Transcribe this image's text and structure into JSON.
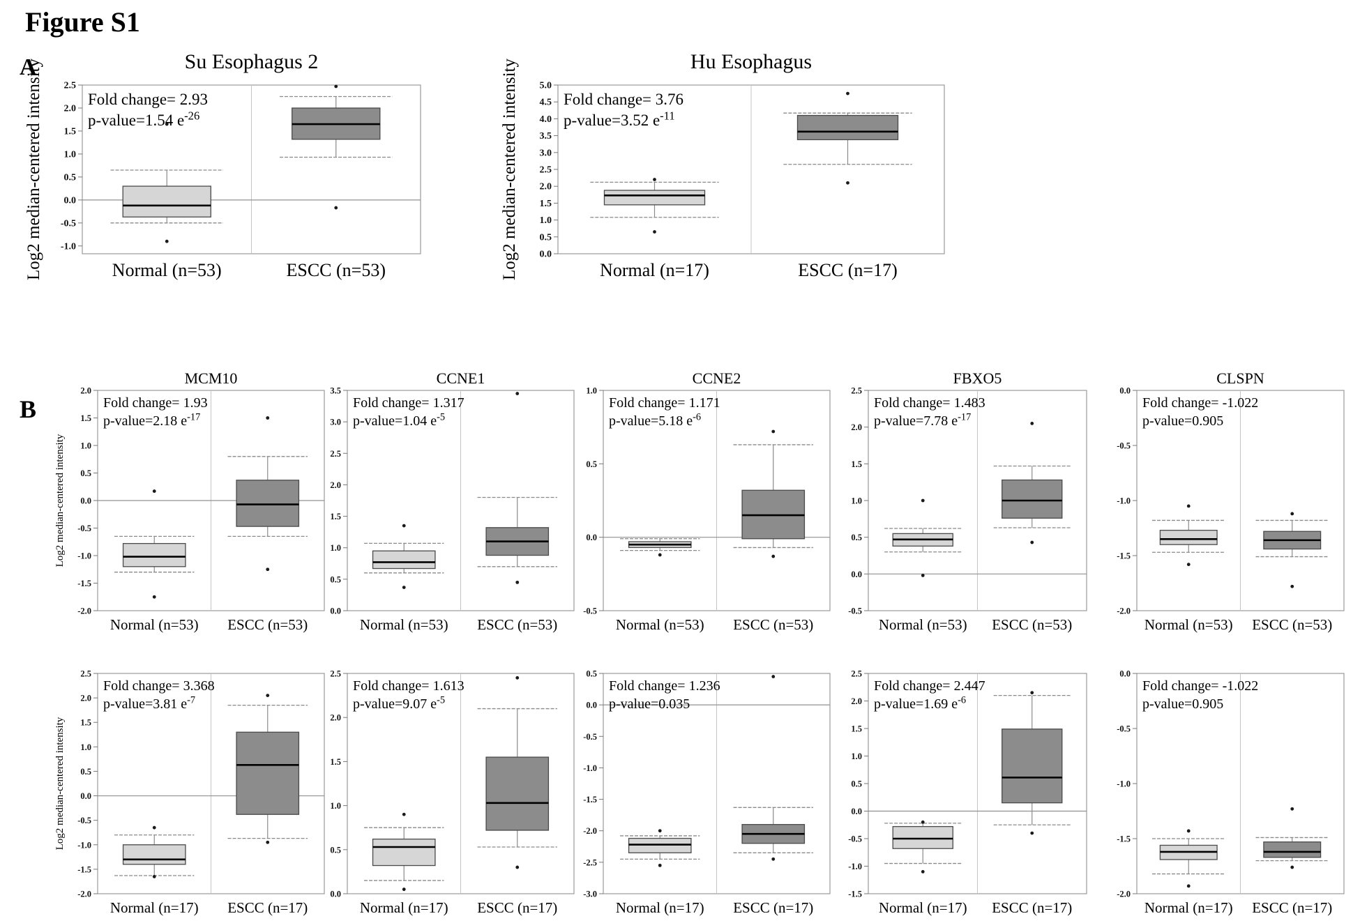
{
  "figure": {
    "title": "Figure S1"
  },
  "panels": {
    "a_label": "A",
    "b_label": "B"
  },
  "colors": {
    "normal_box": "#d6d6d6",
    "escc_box": "#8c8c8c",
    "box_border": "#4a4a4a",
    "median_line": "#000000",
    "whisker": "#8a8a8a",
    "axis_border": "#9a9a9a",
    "divider": "#c4c4c4",
    "zero_line": "#909090",
    "outlier": "#1a1a1a",
    "text": "#111111"
  },
  "chart_data": [
    {
      "id": "su-esophagus-2",
      "panel": "A",
      "type": "boxplot",
      "title": "Su Esophagus 2",
      "fold_label": "Fold change=  2.93",
      "p_label": "p-value=1.54  e",
      "p_exp": "-26",
      "ylabel": "Log2 median-centered intensity",
      "ylim": [
        -1.17,
        2.5
      ],
      "yticks": [
        2.5,
        2.0,
        1.5,
        1.0,
        0.5,
        0.0,
        -0.5,
        -1.0
      ],
      "groups": [
        {
          "label": "Normal (n=53)",
          "kind": "normal",
          "low": -0.5,
          "q1": -0.37,
          "median": -0.12,
          "q3": 0.3,
          "high": 0.65,
          "outliers": [
            1.65,
            -0.9
          ]
        },
        {
          "label": "ESCC (n=53)",
          "kind": "escc",
          "low": 0.93,
          "q1": 1.32,
          "median": 1.65,
          "q3": 2.0,
          "high": 2.25,
          "outliers": [
            2.47,
            -0.17
          ]
        }
      ]
    },
    {
      "id": "hu-esophagus",
      "panel": "A",
      "type": "boxplot",
      "title": "Hu Esophagus",
      "fold_label": "Fold change=  3.76",
      "p_label": "p-value=3.52  e",
      "p_exp": "-11",
      "ylabel": "Log2 median-centered intensity",
      "ylim": [
        0.0,
        5.0
      ],
      "yticks": [
        5.0,
        4.5,
        4.0,
        3.5,
        3.0,
        2.5,
        2.0,
        1.5,
        1.0,
        0.5,
        0.0
      ],
      "groups": [
        {
          "label": "Normal (n=17)",
          "kind": "normal",
          "low": 1.08,
          "q1": 1.45,
          "median": 1.73,
          "q3": 1.88,
          "high": 2.12,
          "outliers": [
            2.2,
            0.65
          ]
        },
        {
          "label": "ESCC (n=17)",
          "kind": "escc",
          "low": 2.65,
          "q1": 3.38,
          "median": 3.62,
          "q3": 4.1,
          "high": 4.17,
          "outliers": [
            4.75,
            2.1
          ]
        }
      ]
    },
    {
      "id": "mcm10-n53",
      "panel": "B",
      "type": "boxplot",
      "title": "MCM10",
      "fold_label": "Fold change=  1.93",
      "p_label": "p-value=2.18  e",
      "p_exp": "-17",
      "ylabel": "Log2 median-centered intensity",
      "ylim": [
        -2.0,
        2.0
      ],
      "yticks": [
        2.0,
        1.5,
        1.0,
        0.5,
        0.0,
        -0.5,
        -1.0,
        -1.5,
        -2.0
      ],
      "groups": [
        {
          "label": "Normal (n=53)",
          "kind": "normal",
          "low": -1.3,
          "q1": -1.2,
          "median": -1.02,
          "q3": -0.78,
          "high": -0.65,
          "outliers": [
            0.17,
            -1.75
          ]
        },
        {
          "label": "ESCC (n=53)",
          "kind": "escc",
          "low": -0.65,
          "q1": -0.47,
          "median": -0.07,
          "q3": 0.37,
          "high": 0.8,
          "outliers": [
            1.5,
            -1.25
          ]
        }
      ]
    },
    {
      "id": "ccne1-n53",
      "panel": "B",
      "type": "boxplot",
      "title": "CCNE1",
      "fold_label": "Fold change=  1.317",
      "p_label": "p-value=1.04  e",
      "p_exp": "-5",
      "ylabel": null,
      "ylim": [
        0.0,
        3.5
      ],
      "yticks": [
        3.5,
        3.0,
        2.5,
        2.0,
        1.5,
        1.0,
        0.5,
        0.0
      ],
      "groups": [
        {
          "label": "Normal (n=53)",
          "kind": "normal",
          "low": 0.6,
          "q1": 0.67,
          "median": 0.77,
          "q3": 0.95,
          "high": 1.07,
          "outliers": [
            1.35,
            0.37
          ]
        },
        {
          "label": "ESCC (n=53)",
          "kind": "escc",
          "low": 0.7,
          "q1": 0.88,
          "median": 1.1,
          "q3": 1.32,
          "high": 1.8,
          "outliers": [
            3.45,
            0.45
          ]
        }
      ]
    },
    {
      "id": "ccne2-n53",
      "panel": "B",
      "type": "boxplot",
      "title": "CCNE2",
      "fold_label": "Fold change=  1.171",
      "p_label": "p-value=5.18  e",
      "p_exp": "-6",
      "ylabel": null,
      "ylim": [
        -0.5,
        1.0
      ],
      "yticks": [
        1.0,
        0.5,
        0.0,
        -0.5
      ],
      "groups": [
        {
          "label": "Normal (n=53)",
          "kind": "normal",
          "low": -0.09,
          "q1": -0.07,
          "median": -0.05,
          "q3": -0.03,
          "high": -0.01,
          "outliers": [
            -0.12
          ]
        },
        {
          "label": "ESCC (n=53)",
          "kind": "escc",
          "low": -0.07,
          "q1": -0.01,
          "median": 0.15,
          "q3": 0.32,
          "high": 0.63,
          "outliers": [
            0.72,
            -0.13
          ]
        }
      ]
    },
    {
      "id": "fbxo5-n53",
      "panel": "B",
      "type": "boxplot",
      "title": "FBXO5",
      "fold_label": "Fold change=  1.483",
      "p_label": "p-value=7.78  e",
      "p_exp": "-17",
      "ylabel": null,
      "ylim": [
        -0.5,
        2.5
      ],
      "yticks": [
        2.5,
        2.0,
        1.5,
        1.0,
        0.5,
        0.0,
        -0.5
      ],
      "groups": [
        {
          "label": "Normal (n=53)",
          "kind": "normal",
          "low": 0.3,
          "q1": 0.38,
          "median": 0.47,
          "q3": 0.55,
          "high": 0.62,
          "outliers": [
            1.0,
            -0.02
          ]
        },
        {
          "label": "ESCC (n=53)",
          "kind": "escc",
          "low": 0.63,
          "q1": 0.76,
          "median": 1.0,
          "q3": 1.28,
          "high": 1.47,
          "outliers": [
            2.05,
            0.43
          ]
        }
      ]
    },
    {
      "id": "clspn-n53",
      "panel": "B",
      "type": "boxplot",
      "title": "CLSPN",
      "fold_label": "Fold change=  -1.022",
      "p_label": "p-value=0.905",
      "p_exp": null,
      "ylabel": null,
      "ylim": [
        -2.0,
        0.0
      ],
      "yticks": [
        0.0,
        -0.5,
        -1.0,
        -1.5,
        -2.0
      ],
      "groups": [
        {
          "label": "Normal (n=53)",
          "kind": "normal",
          "low": -1.47,
          "q1": -1.4,
          "median": -1.35,
          "q3": -1.27,
          "high": -1.18,
          "outliers": [
            -1.05,
            -1.58
          ]
        },
        {
          "label": "ESCC (n=53)",
          "kind": "escc",
          "low": -1.51,
          "q1": -1.44,
          "median": -1.36,
          "q3": -1.28,
          "high": -1.18,
          "outliers": [
            -1.12,
            -1.78
          ]
        }
      ]
    },
    {
      "id": "mcm10-n17",
      "panel": "B",
      "type": "boxplot",
      "title": "",
      "fold_label": "Fold change=  3.368",
      "p_label": "p-value=3.81  e",
      "p_exp": "-7",
      "ylabel": "Log2 median-centered intensity",
      "ylim": [
        -2.0,
        2.5
      ],
      "yticks": [
        2.5,
        2.0,
        1.5,
        1.0,
        0.5,
        0.0,
        -0.5,
        -1.0,
        -1.5,
        -2.0
      ],
      "groups": [
        {
          "label": "Normal (n=17)",
          "kind": "normal",
          "low": -1.63,
          "q1": -1.4,
          "median": -1.3,
          "q3": -1.0,
          "high": -0.8,
          "outliers": [
            -0.65,
            -1.65
          ]
        },
        {
          "label": "ESCC (n=17)",
          "kind": "escc",
          "low": -0.87,
          "q1": -0.38,
          "median": 0.63,
          "q3": 1.3,
          "high": 1.85,
          "outliers": [
            2.05,
            -0.95
          ]
        }
      ]
    },
    {
      "id": "ccne1-n17",
      "panel": "B",
      "type": "boxplot",
      "title": "",
      "fold_label": "Fold change=  1.613",
      "p_label": "p-value=9.07  e",
      "p_exp": "-5",
      "ylabel": null,
      "ylim": [
        0.0,
        2.5
      ],
      "yticks": [
        2.5,
        2.0,
        1.5,
        1.0,
        0.5,
        0.0
      ],
      "groups": [
        {
          "label": "Normal (n=17)",
          "kind": "normal",
          "low": 0.15,
          "q1": 0.32,
          "median": 0.53,
          "q3": 0.62,
          "high": 0.75,
          "outliers": [
            0.9,
            0.05
          ]
        },
        {
          "label": "ESCC (n=17)",
          "kind": "escc",
          "low": 0.53,
          "q1": 0.72,
          "median": 1.03,
          "q3": 1.55,
          "high": 2.1,
          "outliers": [
            2.45,
            0.3
          ]
        }
      ]
    },
    {
      "id": "ccne2-n17",
      "panel": "B",
      "type": "boxplot",
      "title": "",
      "fold_label": "Fold change=  1.236",
      "p_label": "p-value=0.035",
      "p_exp": null,
      "ylabel": null,
      "ylim": [
        -3.0,
        0.5
      ],
      "yticks": [
        0.5,
        0.0,
        -0.5,
        -1.0,
        -1.5,
        -2.0,
        -2.5,
        -3.0
      ],
      "groups": [
        {
          "label": "Normal (n=17)",
          "kind": "normal",
          "low": -2.45,
          "q1": -2.35,
          "median": -2.22,
          "q3": -2.12,
          "high": -2.08,
          "outliers": [
            -2.0,
            -2.55
          ]
        },
        {
          "label": "ESCC (n=17)",
          "kind": "escc",
          "low": -2.35,
          "q1": -2.2,
          "median": -2.05,
          "q3": -1.9,
          "high": -1.63,
          "outliers": [
            0.45,
            -2.45
          ]
        }
      ]
    },
    {
      "id": "fbxo5-n17",
      "panel": "B",
      "type": "boxplot",
      "title": "",
      "fold_label": "Fold change=  2.447",
      "p_label": "p-value=1.69  e",
      "p_exp": "-6",
      "ylabel": null,
      "ylim": [
        -1.5,
        2.5
      ],
      "yticks": [
        2.5,
        2.0,
        1.5,
        1.0,
        0.5,
        0.0,
        -0.5,
        -1.0,
        -1.5
      ],
      "groups": [
        {
          "label": "Normal (n=17)",
          "kind": "normal",
          "low": -0.95,
          "q1": -0.68,
          "median": -0.5,
          "q3": -0.28,
          "high": -0.22,
          "outliers": [
            -0.2,
            -1.1
          ]
        },
        {
          "label": "ESCC (n=17)",
          "kind": "escc",
          "low": -0.25,
          "q1": 0.15,
          "median": 0.61,
          "q3": 1.49,
          "high": 2.1,
          "outliers": [
            2.15,
            -0.4
          ]
        }
      ]
    },
    {
      "id": "clspn-n17",
      "panel": "B",
      "type": "boxplot",
      "title": "",
      "fold_label": "Fold change=  -1.022",
      "p_label": "p-value=0.905",
      "p_exp": null,
      "ylabel": null,
      "ylim": [
        -2.0,
        0.0
      ],
      "yticks": [
        0.0,
        -0.5,
        -1.0,
        -1.5,
        -2.0
      ],
      "groups": [
        {
          "label": "Normal (n=17)",
          "kind": "normal",
          "low": -1.82,
          "q1": -1.69,
          "median": -1.62,
          "q3": -1.56,
          "high": -1.5,
          "outliers": [
            -1.43,
            -1.93
          ]
        },
        {
          "label": "ESCC (n=17)",
          "kind": "escc",
          "low": -1.7,
          "q1": -1.67,
          "median": -1.62,
          "q3": -1.53,
          "high": -1.49,
          "outliers": [
            -1.23,
            -1.76
          ]
        }
      ]
    }
  ]
}
